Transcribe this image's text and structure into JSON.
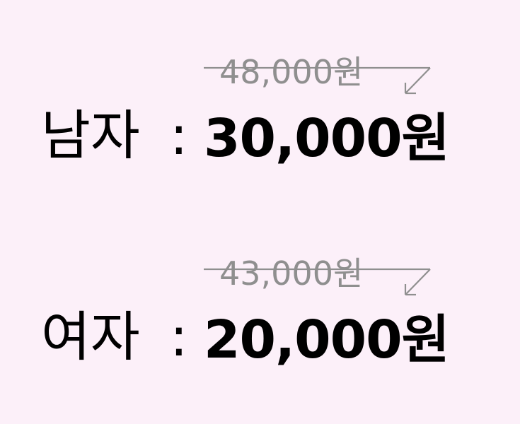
{
  "colors": {
    "background": "#fcf0f9",
    "old_price": "#8f8f8f",
    "text": "#000000"
  },
  "prices": [
    {
      "label": "남자",
      "separator": ":",
      "original_price": "48,000원",
      "sale_price": "30,000원"
    },
    {
      "label": "여자",
      "separator": ":",
      "original_price": "43,000원",
      "sale_price": "20,000원"
    }
  ],
  "icons": {
    "strike_arrow": "strikethrough-down-arrow-icon"
  }
}
